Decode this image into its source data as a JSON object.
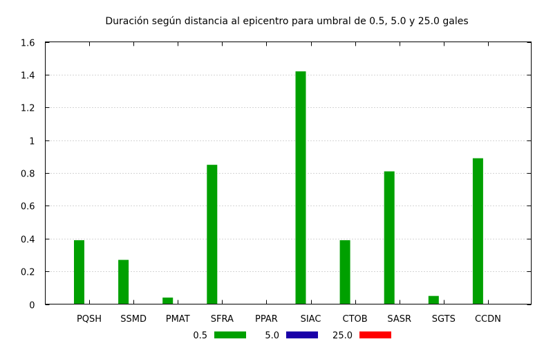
{
  "chart_data": {
    "type": "bar",
    "title": "Duración según distancia al epicentro para umbral de 0.5, 5.0 y 25.0 gales",
    "xlabel": "",
    "ylabel": "",
    "ylim": [
      0,
      1.6
    ],
    "yticks": [
      0,
      0.2,
      0.4,
      0.6,
      0.8,
      1,
      1.2,
      1.4,
      1.6
    ],
    "yticklabels": [
      "0",
      "0.2",
      "0.4",
      "0.6",
      "0.8",
      "1",
      "1.2",
      "1.4",
      "1.6"
    ],
    "grid": true,
    "legend": "bottom",
    "categories": [
      "PQSH",
      "SSMD",
      "PMAT",
      "SFRA",
      "PPAR",
      "SIAC",
      "CTOB",
      "SASR",
      "SGTS",
      "CCDN"
    ],
    "series": [
      {
        "name": "0.5",
        "color": "#00a000",
        "values": [
          0.39,
          0.27,
          0.04,
          0.85,
          0,
          1.42,
          0.39,
          0.81,
          0.05,
          0.89
        ]
      },
      {
        "name": "5.0",
        "color": "#1a00a8",
        "values": [
          0,
          0,
          0,
          0,
          0,
          0,
          0,
          0,
          0,
          0
        ]
      },
      {
        "name": "25.0",
        "color": "#ff0000",
        "values": [
          0,
          0,
          0,
          0,
          0,
          0,
          0,
          0,
          0,
          0
        ]
      }
    ]
  }
}
